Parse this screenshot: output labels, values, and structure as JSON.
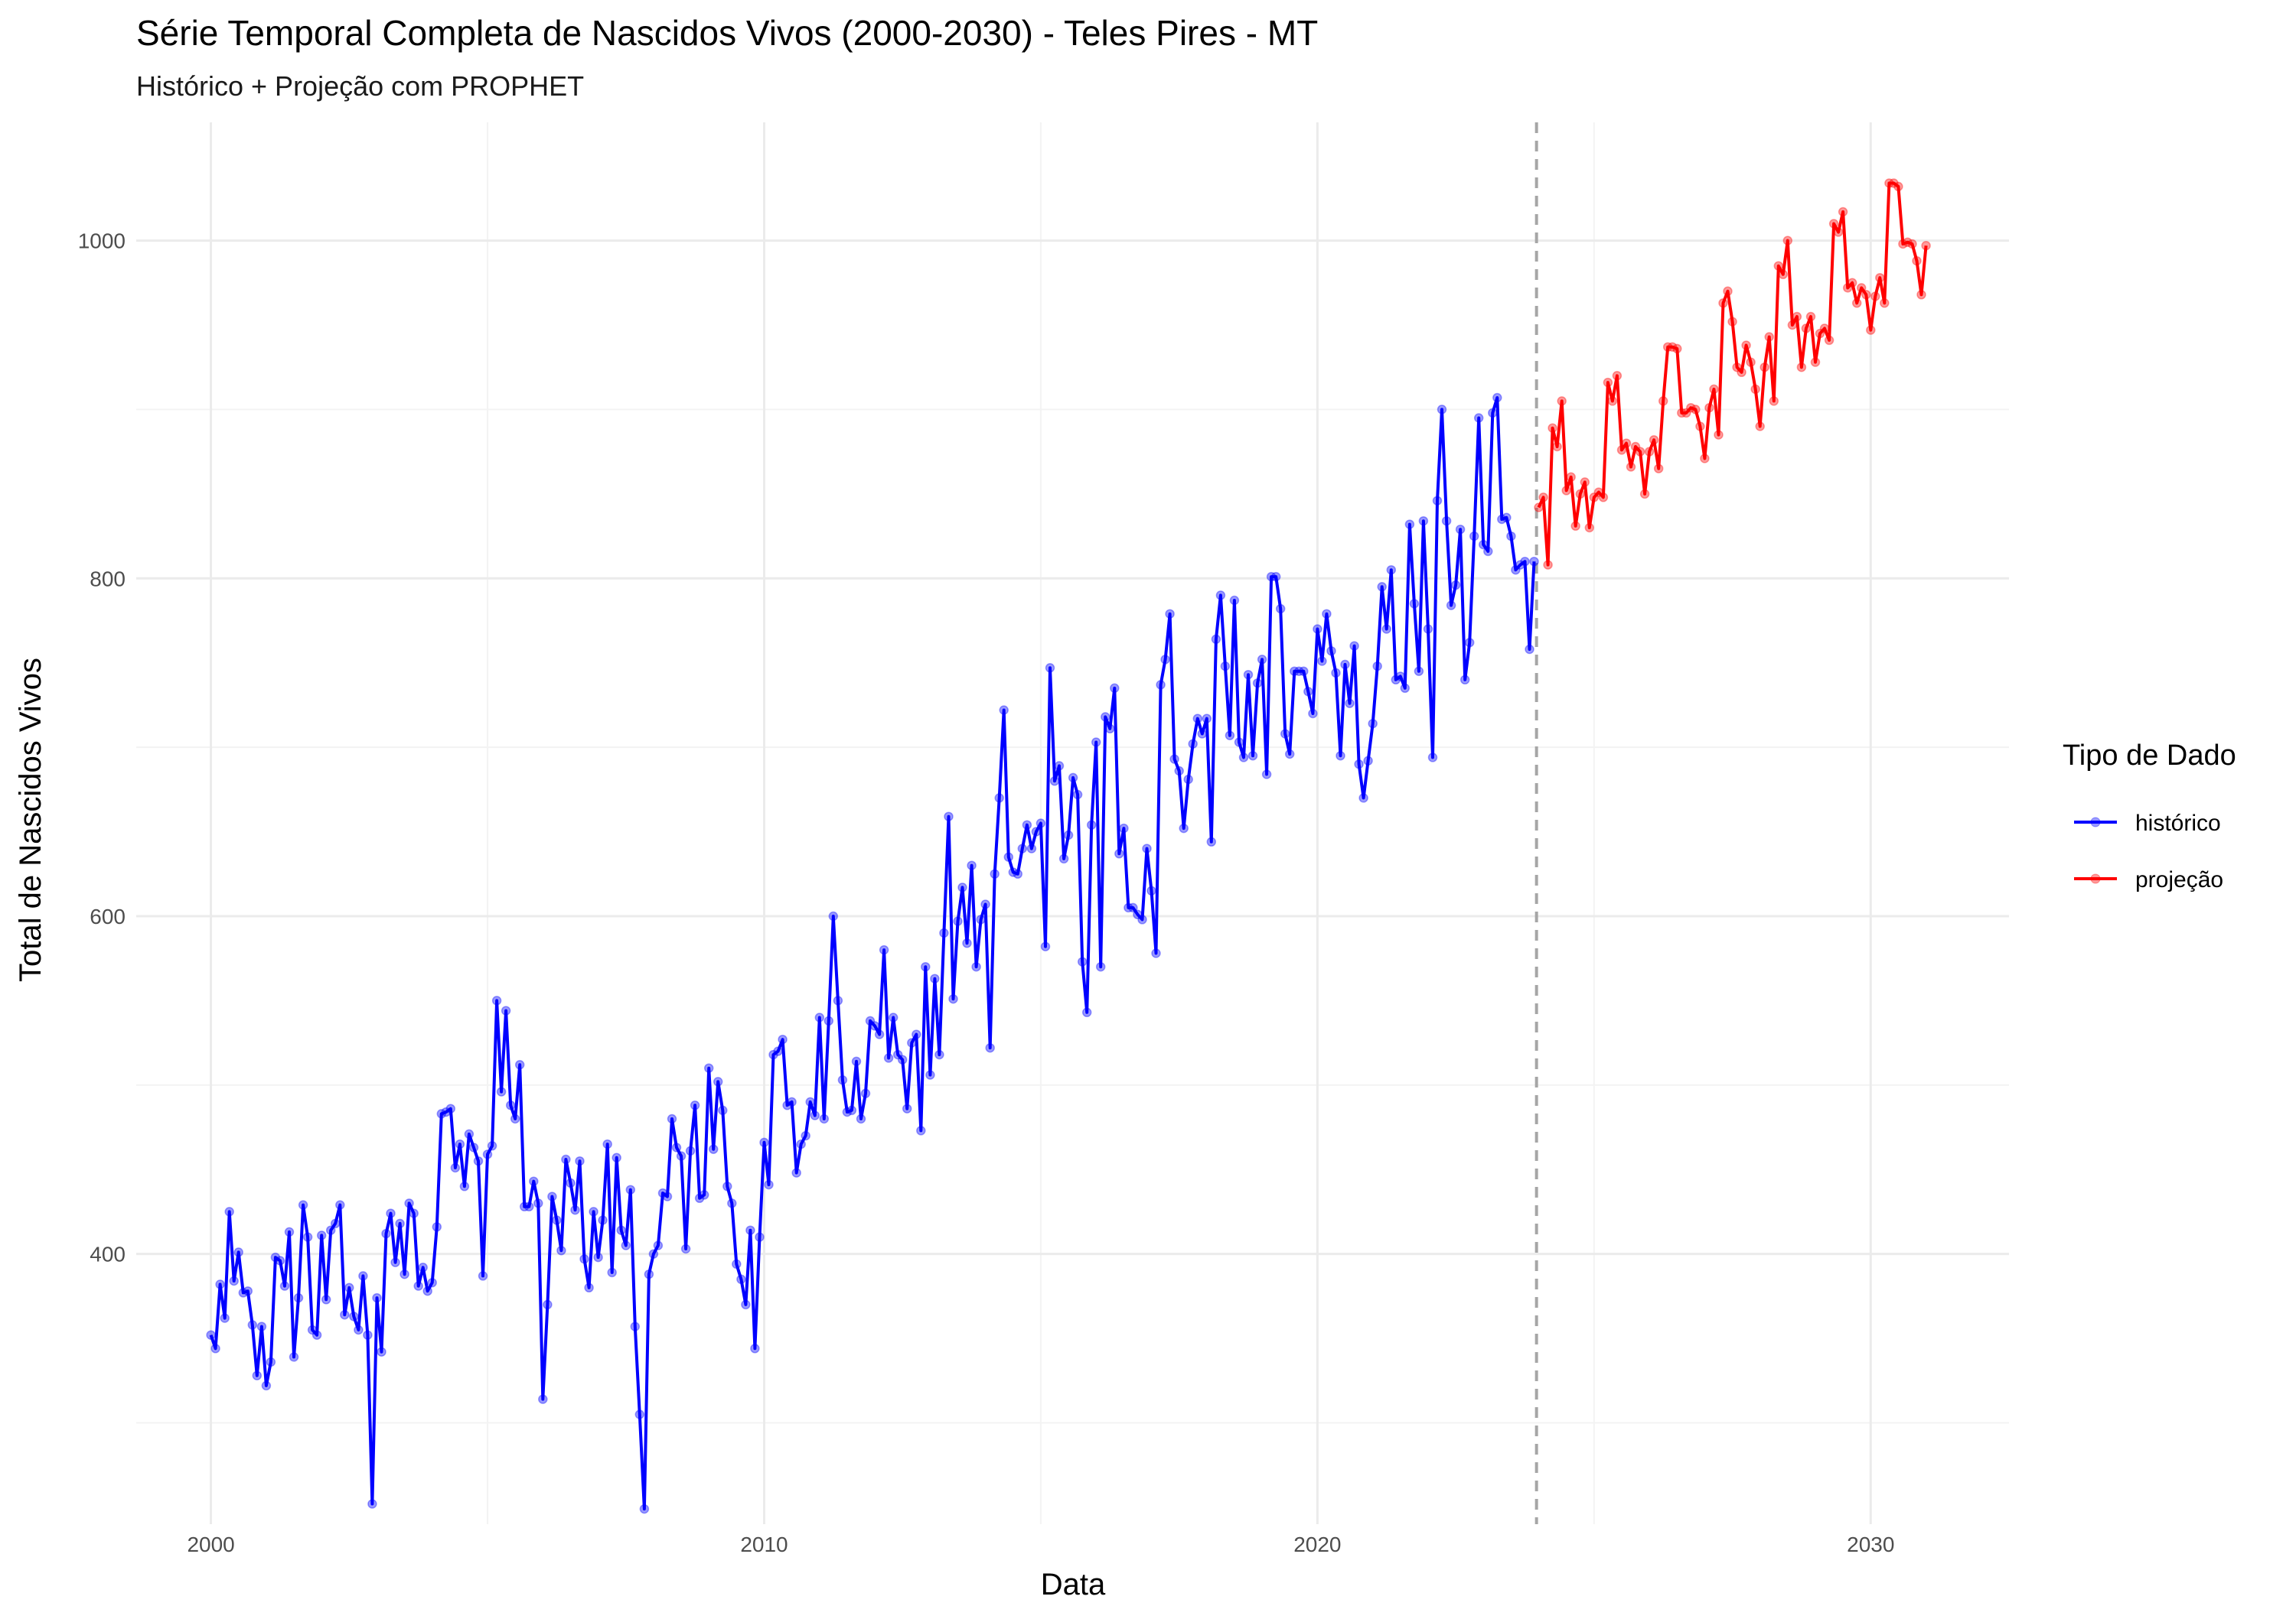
{
  "chart_data": {
    "type": "line",
    "title": "Série Temporal Completa de Nascidos Vivos (2000-2030) -  Teles Pires - MT",
    "subtitle": "Histórico + Projeção com PROPHET",
    "xlabel": "Data",
    "ylabel": "Total de Nascidos Vivos",
    "xlim": [
      1998.65,
      2032.5
    ],
    "ylim": [
      240,
      1070
    ],
    "x_ticks": [
      2000,
      2010,
      2020,
      2030
    ],
    "x_tick_labels": [
      "2000",
      "2010",
      "2020",
      "2030"
    ],
    "y_ticks": [
      400,
      600,
      800,
      1000
    ],
    "y_tick_labels": [
      "400",
      "600",
      "800",
      "1000"
    ],
    "grid": true,
    "legend": {
      "title": "Tipo de Dado",
      "position": "right"
    },
    "split_line": {
      "x": 2023.96,
      "style": "dashed"
    },
    "colors": {
      "histórico": "#0000ff",
      "projeção": "#ff0000",
      "split_line": "#a6a6a6"
    },
    "series": [
      {
        "name": "histórico",
        "start_year": 2000,
        "start_month": 1,
        "values": [
          352,
          344,
          382,
          362,
          425,
          384,
          401,
          377,
          378,
          358,
          328,
          357,
          322,
          336,
          398,
          396,
          381,
          413,
          339,
          374,
          429,
          410,
          355,
          352,
          411,
          373,
          414,
          418,
          429,
          364,
          380,
          363,
          355,
          387,
          352,
          252,
          374,
          342,
          412,
          424,
          395,
          418,
          388,
          430,
          424,
          381,
          392,
          378,
          383,
          416,
          483,
          484,
          486,
          451,
          465,
          440,
          471,
          463,
          455,
          387,
          459,
          464,
          550,
          496,
          544,
          488,
          480,
          512,
          428,
          428,
          443,
          430,
          314,
          370,
          434,
          420,
          402,
          456,
          442,
          426,
          455,
          397,
          380,
          425,
          398,
          420,
          465,
          389,
          457,
          414,
          405,
          438,
          357,
          305,
          249,
          388,
          400,
          405,
          436,
          434,
          480,
          463,
          458,
          403,
          461,
          488,
          433,
          435,
          510,
          462,
          502,
          485,
          440,
          430,
          394,
          385,
          370,
          414,
          344,
          410,
          466,
          441,
          518,
          520,
          527,
          488,
          490,
          448,
          465,
          470,
          490,
          482,
          540,
          480,
          538,
          600,
          550,
          503,
          484,
          485,
          514,
          480,
          495,
          538,
          535,
          530,
          580,
          516,
          540,
          518,
          515,
          486,
          525,
          530,
          473,
          570,
          506,
          563,
          518,
          590,
          659,
          551,
          597,
          617,
          584,
          630,
          570,
          598,
          607,
          522,
          625,
          670,
          722,
          635,
          626,
          625,
          640,
          654,
          640,
          650,
          655,
          582,
          747,
          680,
          689,
          634,
          648,
          682,
          672,
          573,
          543,
          654,
          703,
          570,
          718,
          711,
          735,
          637,
          652,
          605,
          605,
          601,
          598,
          640,
          615,
          578,
          737,
          752,
          779,
          693,
          686,
          652,
          681,
          702,
          717,
          708,
          717,
          644,
          764,
          790,
          748,
          707,
          787,
          703,
          694,
          743,
          695,
          738,
          752,
          684,
          801,
          801,
          782,
          708,
          696,
          745,
          745,
          745,
          733,
          720,
          770,
          751,
          779,
          757,
          744,
          695,
          749,
          726,
          760,
          690,
          670,
          692,
          714,
          748,
          795,
          770,
          805,
          740,
          742,
          735,
          832,
          785,
          745,
          834,
          770,
          694,
          846,
          900,
          834,
          784,
          796,
          829,
          740,
          762,
          825,
          895,
          820,
          816,
          898,
          907,
          835,
          836,
          825,
          805,
          808,
          810,
          758,
          810
        ]
      },
      {
        "name": "projeção",
        "start_year": 2024,
        "start_month": 1,
        "values": [
          842,
          848,
          808,
          889,
          878,
          905,
          852,
          860,
          831,
          850,
          857,
          830,
          848,
          851,
          848,
          916,
          905,
          920,
          876,
          880,
          866,
          878,
          875,
          850,
          875,
          882,
          865,
          905,
          937,
          937,
          936,
          898,
          898,
          901,
          900,
          890,
          871,
          901,
          912,
          885,
          963,
          970,
          952,
          925,
          922,
          938,
          928,
          912,
          890,
          925,
          943,
          905,
          985,
          980,
          1000,
          950,
          955,
          925,
          948,
          955,
          928,
          945,
          948,
          941,
          1010,
          1005,
          1017,
          972,
          975,
          963,
          972,
          968,
          947,
          967,
          978,
          963,
          1034,
          1034,
          1032,
          998,
          999,
          998,
          988,
          968,
          997
        ]
      }
    ]
  }
}
